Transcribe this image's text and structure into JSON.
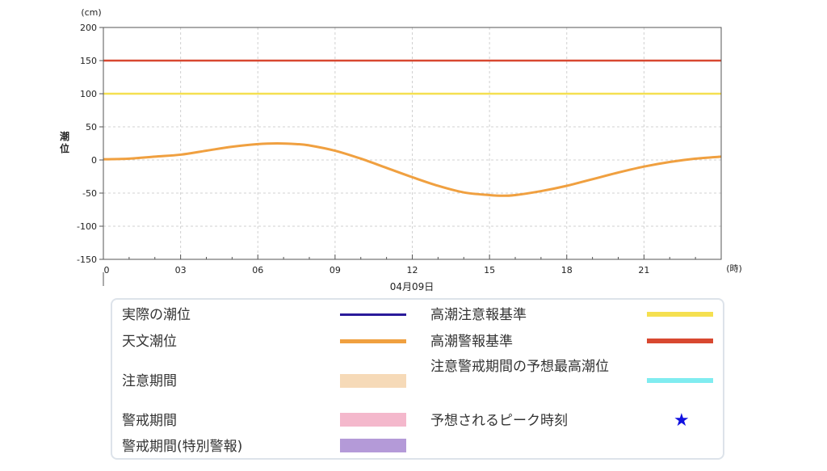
{
  "chart_data": {
    "type": "line",
    "y_unit": "(cm)",
    "x_unit": "(時)",
    "ylabel": "潮位",
    "date_label": "04月09日",
    "x_range": [
      0,
      24
    ],
    "ylim": [
      -150,
      200
    ],
    "x_ticks": [
      "0",
      "03",
      "06",
      "09",
      "12",
      "15",
      "18",
      "21"
    ],
    "y_ticks": [
      "200",
      "150",
      "100",
      "50",
      "0",
      "-50",
      "-100",
      "-150"
    ],
    "grid": true,
    "series": [
      {
        "name": "天文潮位",
        "color": "#f0a040",
        "x": [
          0,
          1,
          2,
          3,
          4,
          5,
          6,
          6.75,
          7.5,
          8,
          9,
          10,
          11,
          12,
          13,
          14,
          15,
          15.5,
          16,
          17,
          18,
          19,
          20,
          21,
          22,
          23,
          24
        ],
        "y": [
          1,
          2,
          5,
          8,
          14,
          20,
          24,
          25,
          24,
          22,
          14,
          2,
          -12,
          -26,
          -39,
          -49,
          -53,
          -54,
          -53,
          -47,
          -39,
          -29,
          -19,
          -10,
          -3,
          2,
          5
        ]
      },
      {
        "name": "高潮注意報基準",
        "color": "#f5e050",
        "x": [
          0,
          24
        ],
        "y": [
          100,
          100
        ]
      },
      {
        "name": "高潮警報基準",
        "color": "#d84830",
        "x": [
          0,
          24
        ],
        "y": [
          150,
          150
        ]
      }
    ]
  },
  "legend": {
    "jissai": {
      "label": "実際の潮位",
      "color": "#2a1a9a"
    },
    "tenmon": {
      "label": "天文潮位",
      "color": "#f0a040"
    },
    "chui_kikan": {
      "label": "注意期間",
      "color": "#f6dab8"
    },
    "keikai_kikan": {
      "label": "警戒期間",
      "color": "#f4b8cc"
    },
    "keikai_tokubetsu": {
      "label": "警戒期間(特別警報)",
      "color": "#b49ad8"
    },
    "chuiho_kijun": {
      "label": "高潮注意報基準",
      "color": "#f5e050"
    },
    "keiho_kijun": {
      "label": "高潮警報基準",
      "color": "#d84830"
    },
    "saikou": {
      "label": "注意警戒期間の予想最高潮位",
      "color": "#80ecf0"
    },
    "peak": {
      "label": "予想されるピーク時刻",
      "symbol": "★",
      "color": "#1010e0"
    }
  }
}
